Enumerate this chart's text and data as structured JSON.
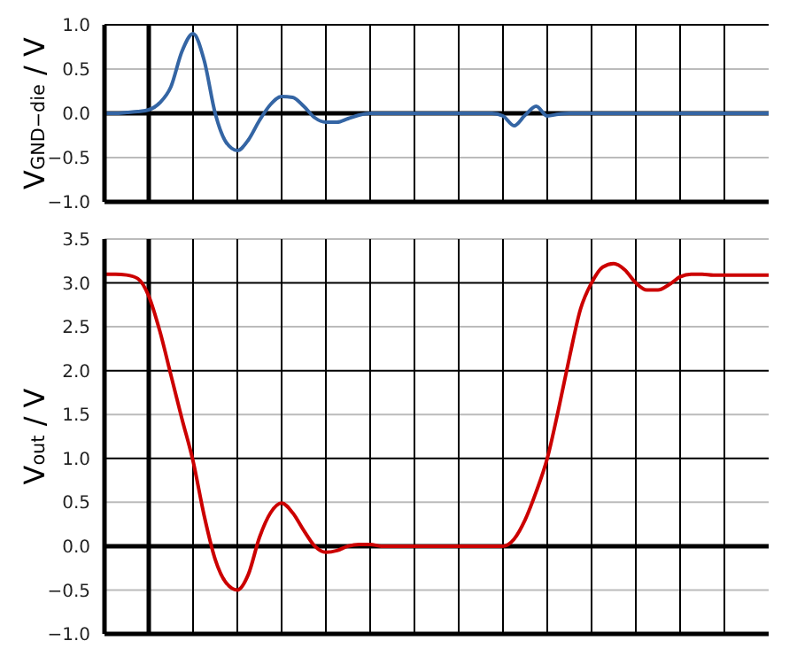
{
  "chart_data": [
    {
      "type": "line",
      "ylabel": "V$_{GND−die}$ / V",
      "categories": [
        null,
        null,
        null,
        null,
        null,
        null,
        null,
        null,
        null,
        null,
        null,
        null,
        null,
        null,
        null,
        null,
        null,
        null,
        null,
        null,
        null,
        null,
        null,
        null,
        null,
        null,
        null,
        null,
        null,
        null,
        null,
        null,
        null,
        null,
        null,
        null,
        null,
        null,
        null,
        null,
        null,
        null,
        null,
        null,
        null,
        null,
        null,
        null,
        null,
        null,
        null,
        null,
        null,
        null,
        null,
        null,
        null,
        null,
        null,
        null,
        null
      ],
      "series": [
        {
          "color": "#3465a4",
          "values": [
            0,
            0,
            0.01,
            0.02,
            0.04,
            0.12,
            0.3,
            0.7,
            0.9,
            0.6,
            0,
            -0.33,
            -0.42,
            -0.3,
            -0.08,
            0.1,
            0.19,
            0.18,
            0.08,
            -0.05,
            -0.1,
            -0.1,
            -0.06,
            -0.02,
            0,
            0,
            0,
            0,
            0,
            0,
            0,
            0,
            0,
            0,
            0,
            0,
            -0.03,
            -0.14,
            -0.02,
            0.08,
            -0.03,
            -0.01,
            0,
            0,
            0,
            0,
            0,
            0,
            0,
            0,
            0,
            0,
            0,
            0,
            0,
            0,
            0,
            0,
            0,
            0,
            0
          ]
        }
      ],
      "ylim": [
        -1,
        1
      ],
      "yticks": [
        {
          "value": -1,
          "label": "−1.0"
        },
        {
          "value": -0.5,
          "label": "−0.5"
        },
        {
          "value": 0,
          "label": "0.0"
        },
        {
          "value": 0.5,
          "label": "0.5"
        },
        {
          "value": 1,
          "label": "1.0"
        }
      ],
      "grid": true,
      "tick_labels": "y",
      "marker": "none",
      "line_style": "solid"
    },
    {
      "type": "line",
      "ylabel": "V$_{out}$ / V",
      "categories": [
        null,
        null,
        null,
        null,
        null,
        null,
        null,
        null,
        null,
        null,
        null,
        null,
        null,
        null,
        null,
        null,
        null,
        null,
        null,
        null,
        null,
        null,
        null,
        null,
        null,
        null,
        null,
        null,
        null,
        null,
        null,
        null,
        null,
        null,
        null,
        null,
        null,
        null,
        null,
        null,
        null,
        null,
        null,
        null,
        null,
        null,
        null,
        null,
        null,
        null,
        null,
        null,
        null,
        null,
        null,
        null,
        null,
        null,
        null,
        null,
        null
      ],
      "series": [
        {
          "color": "#cc0000",
          "values": [
            3.1,
            3.1,
            3.09,
            3.05,
            2.85,
            2.45,
            1.95,
            1.45,
            0.97,
            0.35,
            -0.15,
            -0.42,
            -0.5,
            -0.32,
            0.1,
            0.38,
            0.49,
            0.38,
            0.18,
            0,
            -0.07,
            -0.05,
            0,
            0.02,
            0.02,
            0,
            0,
            0,
            0,
            0,
            0,
            0,
            0,
            0,
            0,
            0,
            0,
            0.08,
            0.3,
            0.62,
            1,
            1.55,
            2.15,
            2.7,
            3,
            3.18,
            3.22,
            3.15,
            3,
            2.92,
            2.92,
            2.98,
            3.07,
            3.1,
            3.1,
            3.09,
            3.09,
            3.09,
            3.09,
            3.09,
            3.09
          ]
        }
      ],
      "ylim": [
        -1,
        3.5
      ],
      "yticks": [
        {
          "value": -1,
          "label": "−1.0"
        },
        {
          "value": -0.5,
          "label": "−0.5"
        },
        {
          "value": 0,
          "label": "0.0"
        },
        {
          "value": 0.5,
          "label": "0.5"
        },
        {
          "value": 1,
          "label": "1.0"
        },
        {
          "value": 1.5,
          "label": "1.5"
        },
        {
          "value": 2,
          "label": "2.0"
        },
        {
          "value": 2.5,
          "label": "2.5"
        },
        {
          "value": 3,
          "label": "3.0"
        },
        {
          "value": 3.5,
          "label": "3.5"
        }
      ],
      "grid": true,
      "tick_labels": "y",
      "marker": "none",
      "line_style": "solid"
    }
  ]
}
